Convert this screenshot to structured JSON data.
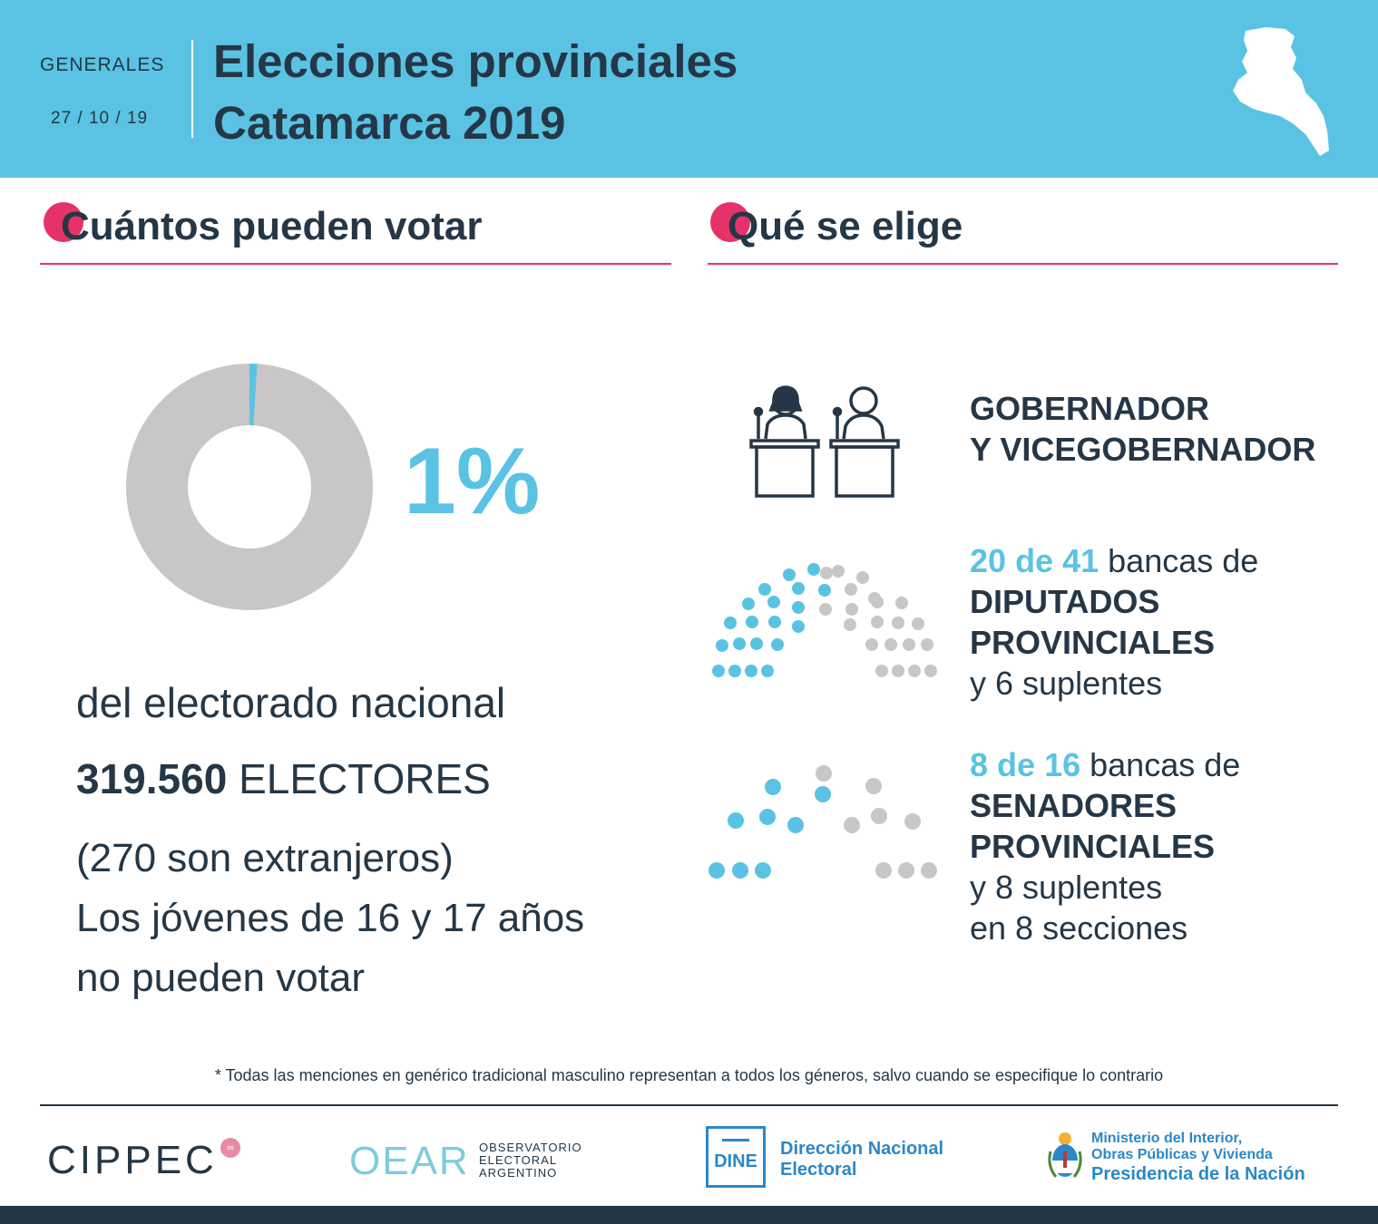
{
  "header": {
    "type": "GENERALES",
    "date": "27 / 10 / 19",
    "title_line1": "Elecciones provinciales",
    "title_line2": "Catamarca 2019"
  },
  "left_section": {
    "title": "Cuántos pueden votar",
    "percent_label": "1%",
    "percent_value": 1,
    "subtitle": "del electorado nacional",
    "voters_number": "319.560",
    "voters_label": "ELECTORES",
    "foreigners": "(270 son extranjeros)",
    "youth_line1": "Los jóvenes de 16 y 17 años",
    "youth_line2": "no pueden votar"
  },
  "right_section": {
    "title": "Qué se elige",
    "executive": {
      "line1": "GOBERNADOR",
      "line2": "Y VICEGOBERNADOR"
    },
    "deputies": {
      "seats_elected": "20",
      "connector": "de",
      "seats_total": "41",
      "suffix": "bancas de",
      "chamber_line1": "DIPUTADOS",
      "chamber_line2": "PROVINCIALES",
      "substitutes": "y 6 suplentes"
    },
    "senators": {
      "seats_elected": "8",
      "connector": "de",
      "seats_total": "16",
      "suffix": "bancas de",
      "chamber_line1": "SENADORES",
      "chamber_line2": "PROVINCIALES",
      "substitutes": "y 8 suplentes",
      "sections": "en 8 secciones"
    }
  },
  "footnote": "* Todas las menciones en genérico tradicional masculino representan a todos los géneros, salvo cuando se especifique lo contrario",
  "logos": {
    "cippec": "CIPPEC",
    "oear": "OEAR",
    "oear_sub1": "OBSERVATORIO",
    "oear_sub2": "ELECTORAL",
    "oear_sub3": "ARGENTINO",
    "dine": "DINE",
    "dine_name1": "Dirección Nacional",
    "dine_name2": "Electoral",
    "ministry_line1": "Ministerio del Interior,",
    "ministry_line2": "Obras Públicas y Vivienda",
    "presidency": "Presidencia de la Nación"
  },
  "colors": {
    "accent_blue": "#5ac3e3",
    "accent_pink": "#e5336a",
    "dark_text": "#253746",
    "inactive_gray": "#c8c6c6"
  }
}
